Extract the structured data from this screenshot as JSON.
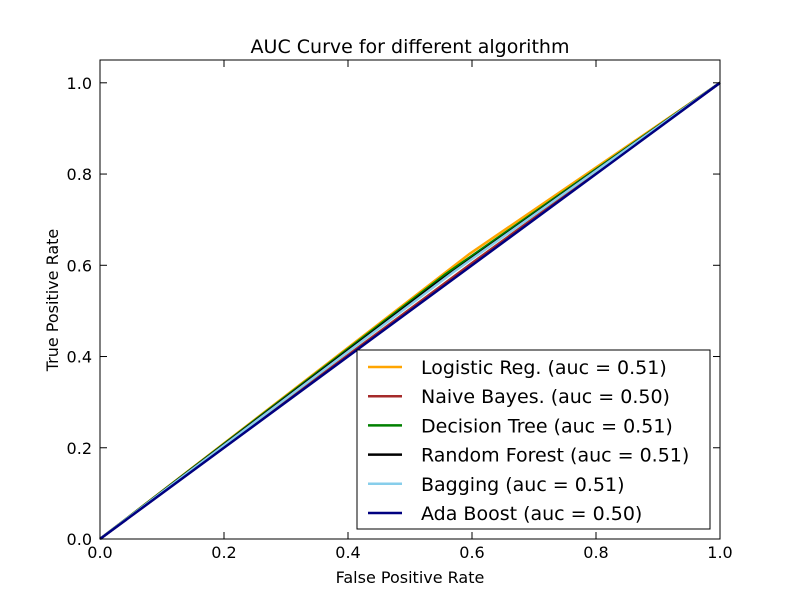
{
  "chart_data": {
    "type": "line",
    "title": "AUC Curve for different algorithm",
    "xlabel": "False Positive Rate",
    "ylabel": "True Positive Rate",
    "xlim": [
      0.0,
      1.0
    ],
    "ylim": [
      0.0,
      1.05
    ],
    "xticks": [
      0.0,
      0.2,
      0.4,
      0.6,
      0.8,
      1.0
    ],
    "xtick_labels": [
      "0.0",
      "0.2",
      "0.4",
      "0.6",
      "0.8",
      "1.0"
    ],
    "yticks": [
      0.0,
      0.2,
      0.4,
      0.6,
      0.8,
      1.0
    ],
    "ytick_labels": [
      "0.0",
      "0.2",
      "0.4",
      "0.6",
      "0.8",
      "1.0"
    ],
    "grid": false,
    "legend_position": "lower-right",
    "series": [
      {
        "name": "Logistic Reg.",
        "label": "Logistic Reg. (auc = 0.51)",
        "color": "#FFA500",
        "x": [
          0,
          0.595,
          1
        ],
        "y": [
          0,
          0.624,
          1
        ]
      },
      {
        "name": "Naive Bayes.",
        "label": "Naive Bayes. (auc = 0.50)",
        "color": "#A52A2A",
        "x": [
          0,
          0.6,
          1
        ],
        "y": [
          0,
          0.605,
          1
        ]
      },
      {
        "name": "Decision Tree",
        "label": "Decision Tree (auc = 0.51)",
        "color": "#008000",
        "x": [
          0,
          0.555,
          1
        ],
        "y": [
          0,
          0.578,
          1
        ]
      },
      {
        "name": "Random Forest",
        "label": "Random Forest (auc = 0.51)",
        "color": "#000000",
        "x": [
          0,
          0.545,
          1
        ],
        "y": [
          0,
          0.563,
          1
        ]
      },
      {
        "name": "Bagging",
        "label": "Bagging (auc = 0.51)",
        "color": "#87CEEB",
        "x": [
          0,
          0.57,
          1
        ],
        "y": [
          0,
          0.585,
          1
        ]
      },
      {
        "name": "Ada Boost",
        "label": "Ada Boost (auc = 0.50)",
        "color": "#000080",
        "x": [
          0,
          1
        ],
        "y": [
          0,
          1
        ]
      }
    ]
  }
}
